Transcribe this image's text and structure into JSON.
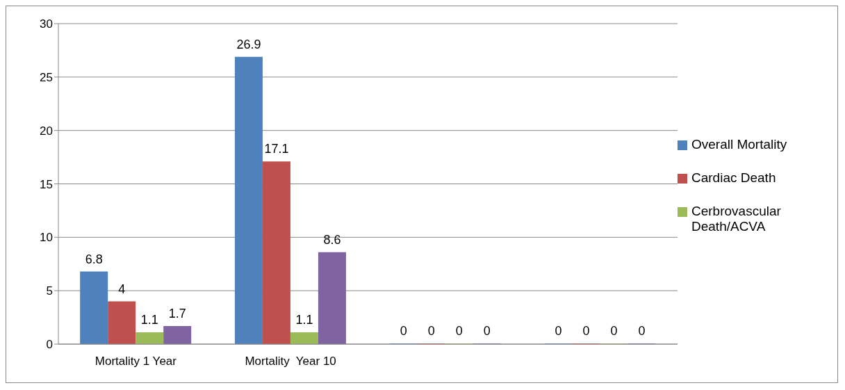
{
  "chart_data": {
    "type": "bar",
    "categories": [
      "Mortality 1 Year",
      "Mortality  Year 10",
      null,
      null
    ],
    "series": [
      {
        "name": "Overall Mortality",
        "color": "#4f81bd",
        "values": [
          6.8,
          26.9,
          0,
          0
        ]
      },
      {
        "name": "Cardiac Death",
        "color": "#c0504d",
        "values": [
          4,
          17.1,
          0,
          0
        ]
      },
      {
        "name": "Cerbrovascular Death/ACVA",
        "color": "#9bbb59",
        "values": [
          1.1,
          1.1,
          0,
          0
        ]
      },
      {
        "color": "#8064a2",
        "values": [
          1.7,
          8.6,
          0,
          0
        ]
      }
    ],
    "ylim": [
      0,
      30
    ],
    "yticks": [
      0,
      5,
      10,
      15,
      20,
      25,
      30
    ],
    "grid": "y",
    "legend": "right",
    "data_labels": true
  }
}
